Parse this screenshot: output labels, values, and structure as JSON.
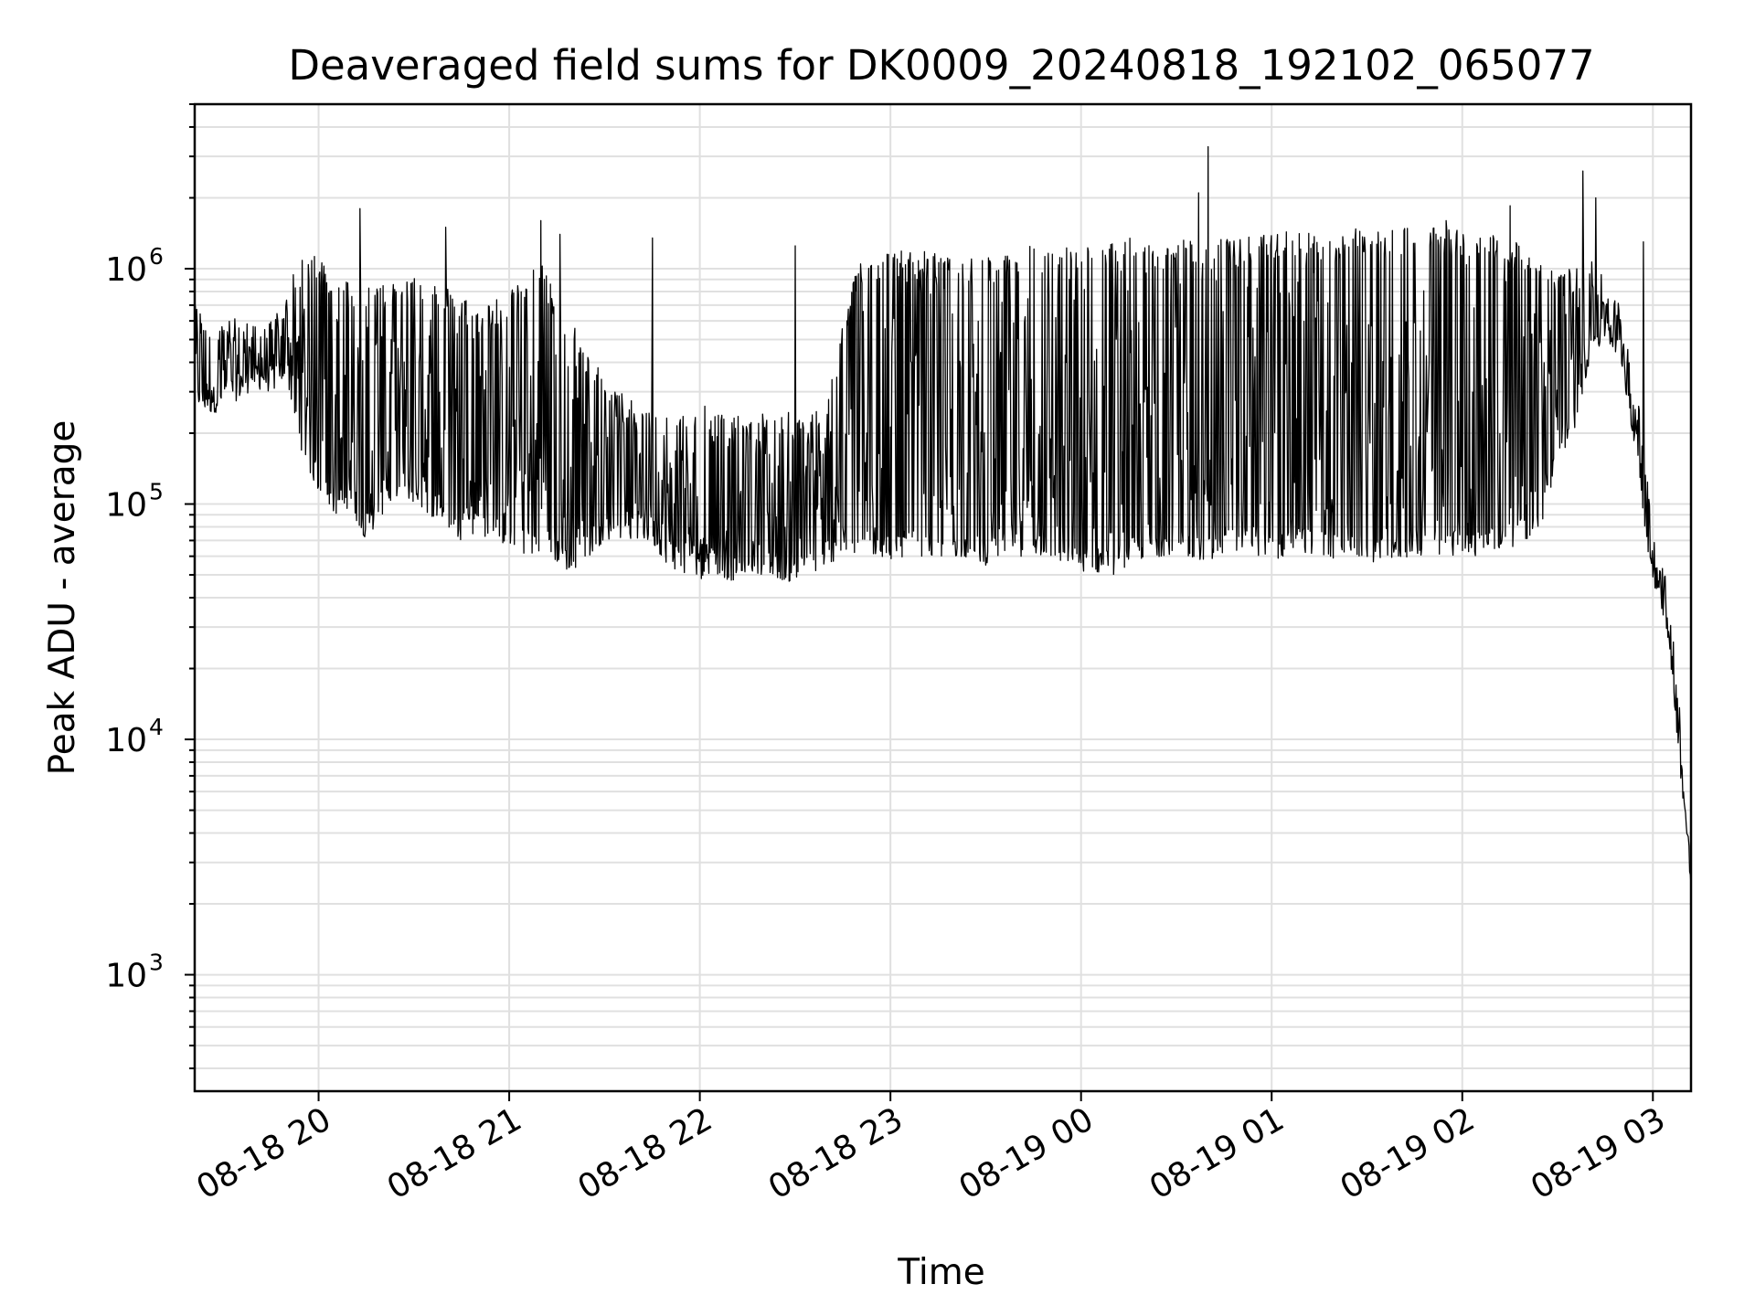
{
  "chart_data": {
    "type": "line",
    "title": "Deaveraged field sums for DK0009_20240818_192102_065077",
    "xlabel": "Time",
    "ylabel": "Peak ADU - average",
    "y_scale": "log",
    "ylim": [
      320,
      5000000
    ],
    "xlim": [
      "08-18 19:21",
      "08-19 03:12"
    ],
    "grid": true,
    "grid_color": "#e0e0e0",
    "line_color": "#000000",
    "x_ticks": [
      {
        "time": "08-18 20:00",
        "label": "08-18 20"
      },
      {
        "time": "08-18 21:00",
        "label": "08-18 21"
      },
      {
        "time": "08-18 22:00",
        "label": "08-18 22"
      },
      {
        "time": "08-18 23:00",
        "label": "08-18 23"
      },
      {
        "time": "08-19 00:00",
        "label": "08-19 00"
      },
      {
        "time": "08-19 01:00",
        "label": "08-19 01"
      },
      {
        "time": "08-19 02:00",
        "label": "08-19 02"
      },
      {
        "time": "08-19 03:00",
        "label": "08-19 03"
      }
    ],
    "y_ticks": [
      {
        "value": 1000,
        "base": "10",
        "exp": "3"
      },
      {
        "value": 10000,
        "base": "10",
        "exp": "4"
      },
      {
        "value": 100000,
        "base": "10",
        "exp": "5"
      },
      {
        "value": 1000000,
        "base": "10",
        "exp": "6"
      }
    ],
    "series": [
      {
        "x": [
          "08-18 19:21",
          "08-18 19:25",
          "08-18 19:30",
          "08-18 19:35",
          "08-18 19:40",
          "08-18 19:45",
          "08-18 19:50",
          "08-18 19:55",
          "08-18 20:00",
          "08-18 20:05",
          "08-18 20:10",
          "08-18 20:15",
          "08-18 20:20",
          "08-18 20:25",
          "08-18 20:30",
          "08-18 20:35",
          "08-18 20:40",
          "08-18 20:45",
          "08-18 20:50",
          "08-18 20:55",
          "08-18 21:00",
          "08-18 21:05",
          "08-18 21:10",
          "08-18 21:15",
          "08-18 21:20",
          "08-18 21:25",
          "08-18 21:30",
          "08-18 21:35",
          "08-18 21:40",
          "08-18 21:45",
          "08-18 21:50",
          "08-18 21:55",
          "08-18 22:00",
          "08-18 22:05",
          "08-18 22:10",
          "08-18 22:15",
          "08-18 22:20",
          "08-18 22:25",
          "08-18 22:30",
          "08-18 22:35",
          "08-18 22:40",
          "08-18 22:45",
          "08-18 22:50",
          "08-18 22:55",
          "08-18 23:00",
          "08-18 23:05",
          "08-18 23:10",
          "08-18 23:15",
          "08-18 23:20",
          "08-18 23:25",
          "08-18 23:30",
          "08-18 23:35",
          "08-18 23:40",
          "08-18 23:45",
          "08-18 23:50",
          "08-18 23:55",
          "08-19 00:00",
          "08-19 00:05",
          "08-19 00:10",
          "08-19 00:15",
          "08-19 00:20",
          "08-19 00:25",
          "08-19 00:30",
          "08-19 00:35",
          "08-19 00:40",
          "08-19 00:45",
          "08-19 00:50",
          "08-19 00:55",
          "08-19 01:00",
          "08-19 01:05",
          "08-19 01:10",
          "08-19 01:15",
          "08-19 01:20",
          "08-19 01:25",
          "08-19 01:30",
          "08-19 01:35",
          "08-19 01:40",
          "08-19 01:45",
          "08-19 01:50",
          "08-19 01:55",
          "08-19 02:00",
          "08-19 02:05",
          "08-19 02:10",
          "08-19 02:15",
          "08-19 02:20",
          "08-19 02:25",
          "08-19 02:30",
          "08-19 02:35",
          "08-19 02:40",
          "08-19 02:45",
          "08-19 02:50",
          "08-19 02:55",
          "08-19 02:58",
          "08-19 03:00",
          "08-19 03:02",
          "08-19 03:04",
          "08-19 03:06",
          "08-19 03:08",
          "08-19 03:10",
          "08-19 03:12"
        ],
        "low": [
          260000,
          240000,
          250000,
          280000,
          310000,
          300000,
          330000,
          160000,
          110000,
          90000,
          95000,
          70000,
          90000,
          110000,
          100000,
          90000,
          80000,
          70000,
          75000,
          70000,
          65000,
          60000,
          58000,
          55000,
          50000,
          60000,
          70000,
          72000,
          70000,
          68000,
          55000,
          50000,
          48000,
          50000,
          47000,
          52000,
          50000,
          48000,
          46000,
          50000,
          55000,
          60000,
          58000,
          60000,
          58000,
          60000,
          60000,
          58000,
          60000,
          58000,
          55000,
          58000,
          60000,
          60000,
          58000,
          55000,
          52000,
          50000,
          50000,
          55000,
          58000,
          60000,
          62000,
          58000,
          58000,
          60000,
          62000,
          60000,
          58000,
          60000,
          62000,
          60000,
          58000,
          60000,
          58000,
          55000,
          58000,
          60000,
          60000,
          58000,
          62000,
          60000,
          60000,
          65000,
          70000,
          80000,
          150000,
          200000,
          400000,
          500000,
          400000,
          150000,
          70000,
          45000,
          40000,
          30000,
          18000,
          9000,
          4500,
          2200
        ],
        "high": [
          700000,
          650000,
          600000,
          620000,
          580000,
          600000,
          850000,
          1100000,
          1200000,
          950000,
          900000,
          880000,
          850000,
          900000,
          1000000,
          900000,
          850000,
          800000,
          700000,
          750000,
          800000,
          900000,
          1100000,
          750000,
          600000,
          450000,
          350000,
          300000,
          280000,
          260000,
          250000,
          270000,
          290000,
          250000,
          240000,
          230000,
          250000,
          240000,
          250000,
          260000,
          270000,
          600000,
          1100000,
          1150000,
          1200000,
          1200000,
          1200000,
          1150000,
          1100000,
          1100000,
          1150000,
          1100000,
          1250000,
          1300000,
          1200000,
          1250000,
          1300000,
          1250000,
          1300000,
          1350000,
          1350000,
          1300000,
          1300000,
          1350000,
          1400000,
          1350000,
          1350000,
          1400000,
          1400000,
          1450000,
          1450000,
          1400000,
          1400000,
          1500000,
          1450000,
          1450000,
          1500000,
          1550000,
          1550000,
          1500000,
          1450000,
          1400000,
          1400000,
          1350000,
          1300000,
          1200000,
          1000000,
          1000000,
          1100000,
          900000,
          700000,
          300000,
          150000,
          80000,
          60000,
          55000,
          30000,
          17000,
          6000,
          3000
        ],
        "spikes": [
          {
            "x": "08-18 20:13",
            "y": 1800000
          },
          {
            "x": "08-18 20:40",
            "y": 1500000
          },
          {
            "x": "08-18 21:10",
            "y": 1600000
          },
          {
            "x": "08-18 21:16",
            "y": 1400000
          },
          {
            "x": "08-18 21:45",
            "y": 1350000
          },
          {
            "x": "08-18 22:30",
            "y": 1250000
          },
          {
            "x": "08-19 00:37",
            "y": 2100000
          },
          {
            "x": "08-19 00:40",
            "y": 3300000
          },
          {
            "x": "08-19 01:55",
            "y": 1600000
          },
          {
            "x": "08-19 02:15",
            "y": 1850000
          },
          {
            "x": "08-19 02:38",
            "y": 2600000
          },
          {
            "x": "08-19 02:42",
            "y": 2000000
          },
          {
            "x": "08-19 02:57",
            "y": 1300000
          }
        ]
      }
    ]
  }
}
